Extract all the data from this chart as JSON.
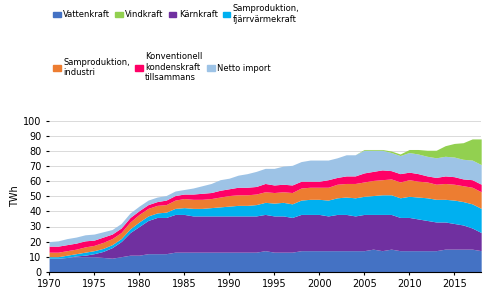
{
  "years": [
    1970,
    1971,
    1972,
    1973,
    1974,
    1975,
    1976,
    1977,
    1978,
    1979,
    1980,
    1981,
    1982,
    1983,
    1984,
    1985,
    1986,
    1987,
    1988,
    1989,
    1990,
    1991,
    1992,
    1993,
    1994,
    1995,
    1996,
    1997,
    1998,
    1999,
    2000,
    2001,
    2002,
    2003,
    2004,
    2005,
    2006,
    2007,
    2008,
    2009,
    2010,
    2011,
    2012,
    2013,
    2014,
    2015,
    2016,
    2017,
    2018
  ],
  "vattenkraft": [
    9,
    9,
    9.5,
    10,
    10,
    10,
    9.5,
    9,
    10,
    11,
    11,
    12,
    12,
    12,
    13,
    13,
    13,
    13,
    13,
    13,
    13,
    13,
    13,
    13,
    14,
    13,
    13,
    13,
    14,
    14,
    14,
    14,
    14,
    14,
    14,
    14,
    15,
    14,
    15,
    14,
    14,
    14,
    14,
    14,
    15,
    15,
    15,
    15,
    14
  ],
  "karnkraft": [
    0,
    0,
    0,
    0.5,
    1,
    2,
    4,
    7,
    10,
    15,
    19,
    22,
    24,
    24,
    25,
    25,
    24,
    24,
    24,
    24,
    24,
    24,
    24,
    24,
    24,
    24,
    24,
    23,
    24,
    24,
    24,
    23,
    24,
    24,
    23,
    24,
    23,
    24,
    23,
    22,
    22,
    21,
    20,
    19,
    18,
    17,
    16,
    14,
    12
  ],
  "samproduktion_fv": [
    1,
    1,
    1.5,
    1.5,
    2,
    2,
    2,
    2,
    2,
    2.5,
    3,
    3,
    3,
    3.5,
    4,
    4.5,
    5,
    5,
    5.5,
    6,
    6.5,
    7,
    7,
    7.5,
    8,
    8.5,
    9,
    9,
    9.5,
    10,
    10,
    10.5,
    11,
    11.5,
    12,
    12,
    12.5,
    13,
    13,
    13,
    14,
    14.5,
    15,
    15,
    15,
    15.5,
    15.5,
    16,
    16
  ],
  "samproduktion_ind": [
    3,
    3,
    3,
    3,
    3.5,
    3.5,
    4,
    4,
    4,
    4.5,
    5,
    5,
    5,
    5,
    5.5,
    6,
    6,
    6,
    6,
    6.5,
    7,
    7,
    7,
    7,
    7,
    7,
    7,
    7.5,
    8,
    8,
    8,
    8.5,
    9,
    9,
    9.5,
    9.5,
    10,
    10,
    10.5,
    10.5,
    11,
    10.5,
    10.5,
    10,
    10.5,
    10.5,
    10.5,
    11,
    11
  ],
  "konv_kond": [
    4,
    4,
    4,
    4,
    4,
    3.5,
    3.5,
    3,
    3,
    3,
    2.5,
    2.5,
    2.5,
    3,
    3,
    3,
    3.5,
    4,
    4,
    4.5,
    4.5,
    5,
    5,
    5,
    5.5,
    5,
    5,
    5,
    4.5,
    4,
    4,
    5,
    4.5,
    5,
    5,
    6,
    6,
    6.5,
    5.5,
    5.5,
    5,
    5,
    4,
    4.5,
    5,
    5,
    4.5,
    5,
    5
  ],
  "netto_import": [
    3,
    3.5,
    4,
    4,
    4,
    4,
    3.5,
    3,
    3,
    3,
    3,
    3,
    3,
    3,
    3,
    3,
    4,
    5,
    6,
    7,
    7,
    8,
    9,
    10,
    10,
    11,
    12,
    13,
    13,
    14,
    14,
    13,
    13,
    14,
    14,
    15,
    14,
    13,
    12,
    12,
    13,
    13,
    13,
    13,
    13,
    13,
    13,
    13,
    13
  ],
  "vindkraft": [
    0,
    0,
    0,
    0,
    0,
    0,
    0,
    0,
    0,
    0,
    0,
    0,
    0,
    0,
    0,
    0,
    0,
    0,
    0,
    0,
    0,
    0,
    0,
    0,
    0,
    0,
    0,
    0,
    0,
    0,
    0,
    0,
    0,
    0,
    0,
    0.5,
    0.5,
    0.5,
    1,
    1,
    2,
    3,
    4,
    5,
    7,
    9,
    11,
    14,
    17
  ],
  "colors": {
    "vattenkraft": "#4472C4",
    "karnkraft": "#7030A0",
    "samproduktion_fv": "#00B0F0",
    "samproduktion_ind": "#ED7D31",
    "konv_kond": "#FF0066",
    "netto_import": "#9DC3E6",
    "vindkraft": "#92D050"
  },
  "legend_row1": [
    {
      "label": "Vattenkraft",
      "color": "#4472C4"
    },
    {
      "label": "Vindkraft",
      "color": "#92D050"
    },
    {
      "label": "Kärnkraft",
      "color": "#7030A0"
    },
    {
      "label": "Samproduktion,\nfjärrvärmekraft",
      "color": "#00B0F0"
    }
  ],
  "legend_row2": [
    {
      "label": "Samproduktion,\nindustri",
      "color": "#ED7D31"
    },
    {
      "label": "Konventionell\nkondenskraft\ntillsammans",
      "color": "#FF0066"
    },
    {
      "label": "Netto import",
      "color": "#9DC3E6"
    }
  ],
  "ylabel": "TWh",
  "ylim": [
    0,
    100
  ],
  "yticks": [
    0,
    10,
    20,
    30,
    40,
    50,
    60,
    70,
    80,
    90,
    100
  ],
  "xticks": [
    1970,
    1975,
    1980,
    1985,
    1990,
    1995,
    2000,
    2005,
    2010,
    2015
  ],
  "grid_color": "#cccccc"
}
